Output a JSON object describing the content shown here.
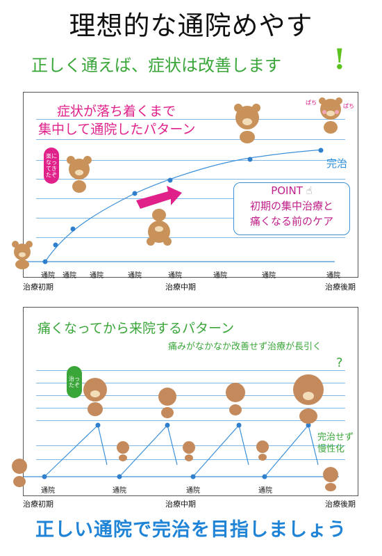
{
  "title": "理想的な通院めやす",
  "subtitle": "正しく通えば、症状は改善します",
  "panel1": {
    "title_line1": "症状が落ち着くまで",
    "title_line2": "集中して通院したパターン",
    "kanji": "完治",
    "point_title": "POINT",
    "point_line1": "初期の集中治療と",
    "point_line2": "痛くなる前のケア",
    "bear_bubble": "楽になってきたぞ",
    "bear_pow_left": "ぱち",
    "bear_pow_right": "ぱち",
    "visit_label": "通院",
    "axis": [
      "治療初期",
      "治療中期",
      "治療後期"
    ]
  },
  "panel2": {
    "title": "痛くなってから来院するパターン",
    "subtitle": "痛みがなかなか改善せず治療が長引く",
    "chronic_line1": "完治せず",
    "chronic_line2": "慢性化",
    "deer_bubble": "治ったぞ",
    "visit_label": "通院",
    "axis": [
      "治療初期",
      "治療中期",
      "治療後期"
    ]
  },
  "bottom": "正しい通院で完治を目指しましょう",
  "colors": {
    "blue": "#3b8fd9",
    "pink": "#e0218a",
    "green": "#3aa63a",
    "bear": "#c8925a",
    "deer": "#c48a5c"
  }
}
